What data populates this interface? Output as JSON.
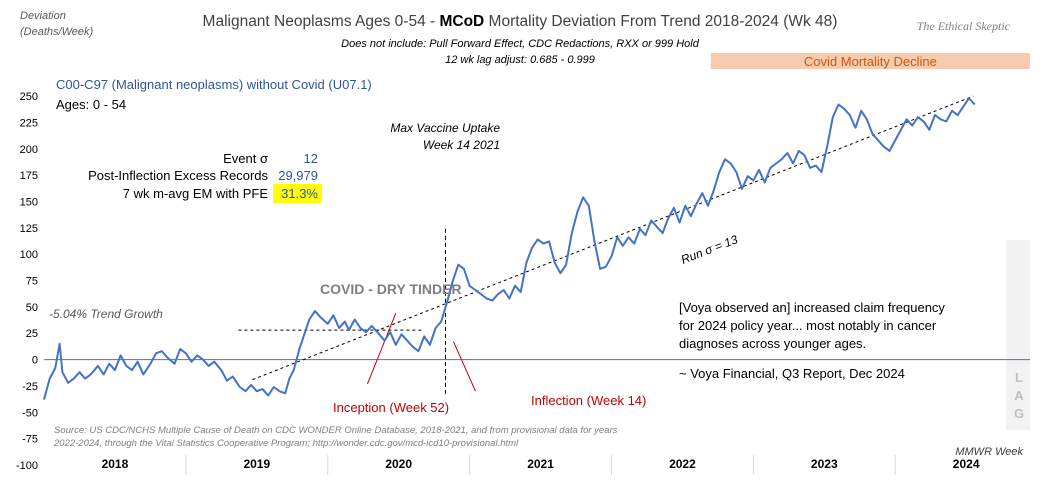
{
  "chart_data": {
    "type": "line",
    "title": {
      "prefix": "Malignant Neoplasms Ages 0-54 - ",
      "bold": "MCoD",
      "suffix": " Mortality Deviation From Trend  2018-2024 (Wk 48)"
    },
    "subtitle_lines": [
      "Does not include: Pull Forward Effect,  CDC Redactions, RXX or 999 Hold",
      "12 wk lag adjust: 0.685 - 0.999"
    ],
    "watermark": "The Ethical Skeptic",
    "ylabel_lines": [
      "Deviation",
      "(Deaths/Week)"
    ],
    "xlabel": "MMWR Week",
    "ylim": [
      -100,
      270
    ],
    "yticks": [
      -100,
      -75,
      -50,
      -25,
      0,
      25,
      50,
      75,
      100,
      125,
      150,
      175,
      200,
      225,
      250
    ],
    "x_range": [
      2018.0,
      2024.95
    ],
    "year_labels": [
      "2018",
      "2019",
      "2020",
      "2021",
      "2022",
      "2023",
      "2024"
    ],
    "series": [
      {
        "name": "C00-C97 (Malignant neoplasms) without Covid (U07.1)",
        "color": "#4472c4",
        "points": [
          [
            2018.0,
            -38
          ],
          [
            2018.04,
            -18
          ],
          [
            2018.08,
            -8
          ],
          [
            2018.11,
            15
          ],
          [
            2018.13,
            -12
          ],
          [
            2018.17,
            -22
          ],
          [
            2018.21,
            -18
          ],
          [
            2018.25,
            -12
          ],
          [
            2018.29,
            -18
          ],
          [
            2018.33,
            -14
          ],
          [
            2018.38,
            -6
          ],
          [
            2018.42,
            -14
          ],
          [
            2018.46,
            -4
          ],
          [
            2018.5,
            -10
          ],
          [
            2018.54,
            4
          ],
          [
            2018.58,
            -6
          ],
          [
            2018.62,
            -10
          ],
          [
            2018.66,
            -2
          ],
          [
            2018.7,
            -14
          ],
          [
            2018.75,
            -4
          ],
          [
            2018.79,
            6
          ],
          [
            2018.83,
            8
          ],
          [
            2018.87,
            2
          ],
          [
            2018.92,
            -4
          ],
          [
            2018.96,
            10
          ],
          [
            2019.0,
            6
          ],
          [
            2019.04,
            -2
          ],
          [
            2019.08,
            4
          ],
          [
            2019.12,
            0
          ],
          [
            2019.16,
            -6
          ],
          [
            2019.2,
            -2
          ],
          [
            2019.25,
            -10
          ],
          [
            2019.29,
            -20
          ],
          [
            2019.33,
            -16
          ],
          [
            2019.38,
            -26
          ],
          [
            2019.42,
            -30
          ],
          [
            2019.46,
            -24
          ],
          [
            2019.5,
            -30
          ],
          [
            2019.54,
            -28
          ],
          [
            2019.58,
            -34
          ],
          [
            2019.62,
            -26
          ],
          [
            2019.66,
            -30
          ],
          [
            2019.7,
            -32
          ],
          [
            2019.73,
            -18
          ],
          [
            2019.76,
            -10
          ],
          [
            2019.8,
            10
          ],
          [
            2019.83,
            22
          ],
          [
            2019.87,
            38
          ],
          [
            2019.91,
            46
          ],
          [
            2019.95,
            40
          ],
          [
            2020.0,
            34
          ],
          [
            2020.04,
            42
          ],
          [
            2020.08,
            30
          ],
          [
            2020.12,
            36
          ],
          [
            2020.15,
            28
          ],
          [
            2020.19,
            38
          ],
          [
            2020.23,
            30
          ],
          [
            2020.27,
            26
          ],
          [
            2020.31,
            32
          ],
          [
            2020.35,
            26
          ],
          [
            2020.4,
            18
          ],
          [
            2020.44,
            26
          ],
          [
            2020.48,
            14
          ],
          [
            2020.52,
            24
          ],
          [
            2020.56,
            18
          ],
          [
            2020.6,
            12
          ],
          [
            2020.64,
            8
          ],
          [
            2020.68,
            22
          ],
          [
            2020.72,
            14
          ],
          [
            2020.76,
            30
          ],
          [
            2020.8,
            36
          ],
          [
            2020.84,
            54
          ],
          [
            2020.88,
            74
          ],
          [
            2020.92,
            90
          ],
          [
            2020.96,
            86
          ],
          [
            2021.0,
            70
          ],
          [
            2021.04,
            66
          ],
          [
            2021.08,
            62
          ],
          [
            2021.12,
            58
          ],
          [
            2021.16,
            56
          ],
          [
            2021.2,
            62
          ],
          [
            2021.24,
            66
          ],
          [
            2021.28,
            58
          ],
          [
            2021.32,
            70
          ],
          [
            2021.36,
            64
          ],
          [
            2021.4,
            92
          ],
          [
            2021.44,
            106
          ],
          [
            2021.48,
            114
          ],
          [
            2021.52,
            110
          ],
          [
            2021.56,
            112
          ],
          [
            2021.6,
            92
          ],
          [
            2021.64,
            82
          ],
          [
            2021.68,
            90
          ],
          [
            2021.72,
            120
          ],
          [
            2021.76,
            140
          ],
          [
            2021.8,
            154
          ],
          [
            2021.84,
            146
          ],
          [
            2021.88,
            112
          ],
          [
            2021.92,
            86
          ],
          [
            2021.96,
            88
          ],
          [
            2022.0,
            98
          ],
          [
            2022.04,
            116
          ],
          [
            2022.08,
            108
          ],
          [
            2022.12,
            116
          ],
          [
            2022.16,
            110
          ],
          [
            2022.2,
            124
          ],
          [
            2022.24,
            118
          ],
          [
            2022.28,
            132
          ],
          [
            2022.32,
            126
          ],
          [
            2022.36,
            120
          ],
          [
            2022.4,
            134
          ],
          [
            2022.44,
            144
          ],
          [
            2022.48,
            130
          ],
          [
            2022.52,
            146
          ],
          [
            2022.56,
            136
          ],
          [
            2022.6,
            148
          ],
          [
            2022.64,
            158
          ],
          [
            2022.68,
            146
          ],
          [
            2022.72,
            160
          ],
          [
            2022.76,
            178
          ],
          [
            2022.8,
            190
          ],
          [
            2022.84,
            186
          ],
          [
            2022.88,
            178
          ],
          [
            2022.92,
            162
          ],
          [
            2022.96,
            174
          ],
          [
            2023.0,
            170
          ],
          [
            2023.04,
            180
          ],
          [
            2023.08,
            168
          ],
          [
            2023.12,
            182
          ],
          [
            2023.16,
            186
          ],
          [
            2023.2,
            190
          ],
          [
            2023.24,
            196
          ],
          [
            2023.28,
            186
          ],
          [
            2023.32,
            198
          ],
          [
            2023.36,
            194
          ],
          [
            2023.4,
            182
          ],
          [
            2023.44,
            184
          ],
          [
            2023.48,
            178
          ],
          [
            2023.52,
            202
          ],
          [
            2023.56,
            230
          ],
          [
            2023.6,
            242
          ],
          [
            2023.64,
            238
          ],
          [
            2023.68,
            232
          ],
          [
            2023.72,
            220
          ],
          [
            2023.76,
            236
          ],
          [
            2023.8,
            228
          ],
          [
            2023.84,
            214
          ],
          [
            2023.88,
            208
          ],
          [
            2023.92,
            202
          ],
          [
            2023.96,
            198
          ],
          [
            2024.0,
            208
          ],
          [
            2024.04,
            218
          ],
          [
            2024.08,
            228
          ],
          [
            2024.12,
            222
          ],
          [
            2024.16,
            230
          ],
          [
            2024.2,
            226
          ],
          [
            2024.24,
            218
          ],
          [
            2024.28,
            232
          ],
          [
            2024.32,
            228
          ],
          [
            2024.36,
            226
          ],
          [
            2024.4,
            236
          ],
          [
            2024.44,
            232
          ],
          [
            2024.48,
            240
          ],
          [
            2024.52,
            248
          ],
          [
            2024.56,
            242
          ]
        ]
      }
    ],
    "series_label": "C00-C97 (Malignant neoplasms) without Covid (U07.1)",
    "ages_label": "Ages: 0 - 54",
    "stats": [
      {
        "label": "Event σ",
        "value": "12",
        "highlight": false
      },
      {
        "label": "Post-Inflection Excess Records",
        "value": "29,979",
        "highlight": false
      },
      {
        "label": "7 wk m-avg EM with PFE",
        "value": "31.3%",
        "highlight": true
      }
    ],
    "trend_growth_label": "-5.04% Trend Growth",
    "trend_line": {
      "from": [
        2019.47,
        -19
      ],
      "to": [
        2024.55,
        250
      ]
    },
    "event_level_line": {
      "from": [
        2019.37,
        28
      ],
      "to": [
        2020.68,
        28
      ]
    },
    "inception_diagonal": {
      "from": [
        2020.28,
        -23
      ],
      "to": [
        2020.48,
        44
      ]
    },
    "max_vaccine_line": {
      "x": 2020.83,
      "y_bottom": -35,
      "y_top": 124
    },
    "max_vaccine_label_lines": [
      "Max Vaccine Uptake",
      "Week 14 2021"
    ],
    "covid_dry_tinder_label": "COVID - DRY TINDER",
    "run_sigma_label": "Run σ = 13",
    "inception_label": "Inception (Week 52)",
    "inflection_label": "Inflection (Week 14)",
    "covid_decline_band": {
      "label": "Covid Mortality Decline",
      "x_start": 2022.7,
      "x_end": 2024.95,
      "color": "#f8cbad"
    },
    "quote_lines": [
      "[Voya observed an] increased claim frequency",
      "for 2024  policy year... most notably in cancer",
      "diagnoses across younger ages."
    ],
    "quote_attribution": "~ Voya Financial, Q3 Report, Dec 2024",
    "lag_letters": [
      "L",
      "A",
      "G"
    ],
    "source_lines": [
      "Source: US CDC/NCHS Multiple Cause of Death on CDC WONDER Online Database, 2018-2021, and from provisional data for years",
      "2022-2024, through the Vital Statistics Cooperative Program; http://wonder.cdc.gov/mcd-icd10-provisional.html"
    ]
  }
}
